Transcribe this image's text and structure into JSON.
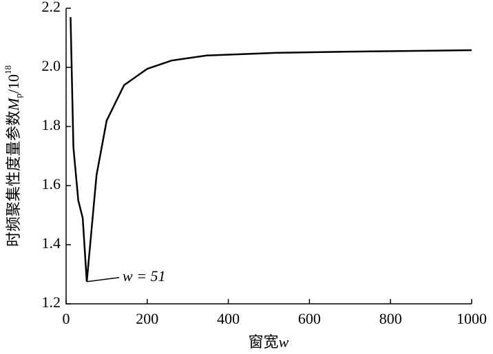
{
  "chart_data": {
    "type": "line",
    "x": [
      11,
      18,
      30,
      41,
      51,
      75,
      100,
      143,
      200,
      260,
      346,
      516,
      686,
      1000
    ],
    "values": [
      2.17,
      1.73,
      1.55,
      1.49,
      1.275,
      1.635,
      1.82,
      1.94,
      1.995,
      2.023,
      2.04,
      2.049,
      2.053,
      2.058
    ],
    "color": "#000000",
    "xlim": [
      0,
      1000
    ],
    "xticks": [
      0,
      200,
      400,
      600,
      800,
      1000
    ],
    "ylim": [
      1.2,
      2.2
    ],
    "yticks": [
      1.2,
      1.4,
      1.6,
      1.8,
      {
        "value": 2,
        "label": "2.0"
      },
      2.2
    ],
    "xlabel": [
      "窗宽",
      "w"
    ],
    "ylabel": [
      "时频聚集性度量参数",
      "M",
      "p",
      "/10",
      "18"
    ],
    "annotation": {
      "text": "w = 51",
      "x": 51,
      "y": 1.275
    }
  }
}
